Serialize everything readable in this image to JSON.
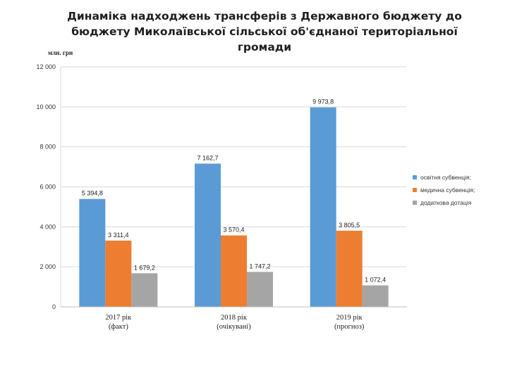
{
  "chart_data": {
    "type": "bar",
    "title_lines": [
      "Динаміка надходжень трансферів з Державного бюджету до",
      "бюджету Миколаївської сільської об'єднаної територіальної",
      "громади"
    ],
    "unit_label": "млн. грн",
    "categories": [
      [
        "2017 рік",
        "(факт)"
      ],
      [
        "2018 рік",
        "(очікувані)"
      ],
      [
        "2019 рік",
        "(прогноз)"
      ]
    ],
    "series": [
      {
        "name": "освітня субвенція;",
        "color": "#5b9bd5",
        "values": [
          5394.8,
          7162.7,
          9973.8
        ],
        "labels": [
          "5 394,8",
          "7 162,7",
          "9 973,8"
        ]
      },
      {
        "name": "медична субвенція;",
        "color": "#ed7d31",
        "values": [
          3311.4,
          3570.4,
          3805.5
        ],
        "labels": [
          "3 311,4",
          "3 570,4",
          "3 805,5"
        ]
      },
      {
        "name": "додаткова дотація",
        "color": "#a5a5a5",
        "values": [
          1679.2,
          1747.2,
          1072.4
        ],
        "labels": [
          "1 679,2",
          "1 747,2",
          "1 072,4"
        ]
      }
    ],
    "ylim": [
      0,
      12000
    ],
    "yticks": [
      0,
      2000,
      4000,
      6000,
      8000,
      10000,
      12000
    ],
    "ytick_labels": [
      "0",
      "2 000",
      "4 000",
      "6 000",
      "8 000",
      "10 000",
      "12 000"
    ],
    "grid": true,
    "legend_position": "right"
  }
}
